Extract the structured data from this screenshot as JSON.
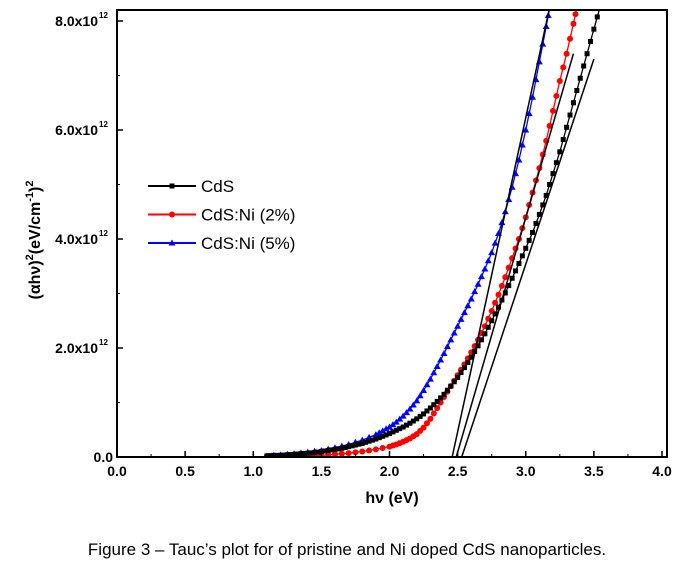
{
  "chart_data": {
    "type": "scatter",
    "title": "",
    "xlabel": "hν (eV)",
    "ylabel": "(αhν)² (eV/cm⁻¹)²",
    "ylabel_parts": {
      "base": "(αhν)",
      "exp": "2",
      "unit": "(eV/cm",
      "unit_exp": "-1",
      "close": ")",
      "close_exp": "2"
    },
    "xlim": [
      0,
      4.0
    ],
    "ylim": [
      0,
      8.2
    ],
    "y_scale_note": "x10^12",
    "xticks": [
      "0.0",
      "0.5",
      "1.0",
      "1.5",
      "2.0",
      "2.5",
      "3.0",
      "3.5",
      "4.0"
    ],
    "yticks": [
      {
        "v": 0,
        "label": "0.0",
        "exp": ""
      },
      {
        "v": 2,
        "label": "2.0x10",
        "exp": "12"
      },
      {
        "v": 4,
        "label": "4.0x10",
        "exp": "12"
      },
      {
        "v": 6,
        "label": "6.0x10",
        "exp": "12"
      },
      {
        "v": 8,
        "label": "8.0x10",
        "exp": "12"
      }
    ],
    "legend_position": "center-left",
    "series": [
      {
        "name": "CdS",
        "color": "#000000",
        "marker": "square",
        "points": [
          [
            1.1,
            0.02
          ],
          [
            1.15,
            0.03
          ],
          [
            1.2,
            0.03
          ],
          [
            1.25,
            0.04
          ],
          [
            1.3,
            0.05
          ],
          [
            1.35,
            0.06
          ],
          [
            1.4,
            0.07
          ],
          [
            1.45,
            0.08
          ],
          [
            1.5,
            0.1
          ],
          [
            1.55,
            0.12
          ],
          [
            1.6,
            0.14
          ],
          [
            1.65,
            0.16
          ],
          [
            1.7,
            0.19
          ],
          [
            1.75,
            0.22
          ],
          [
            1.8,
            0.25
          ],
          [
            1.85,
            0.29
          ],
          [
            1.9,
            0.33
          ],
          [
            1.95,
            0.38
          ],
          [
            2.0,
            0.43
          ],
          [
            2.05,
            0.49
          ],
          [
            2.1,
            0.55
          ],
          [
            2.15,
            0.62
          ],
          [
            2.2,
            0.7
          ],
          [
            2.25,
            0.79
          ],
          [
            2.3,
            0.9
          ],
          [
            2.35,
            1.02
          ],
          [
            2.4,
            1.15
          ],
          [
            2.45,
            1.3
          ],
          [
            2.5,
            1.46
          ],
          [
            2.55,
            1.64
          ],
          [
            2.6,
            1.83
          ],
          [
            2.65,
            2.04
          ],
          [
            2.7,
            2.26
          ],
          [
            2.75,
            2.5
          ],
          [
            2.8,
            2.75
          ],
          [
            2.85,
            3.01
          ],
          [
            2.9,
            3.28
          ],
          [
            2.95,
            3.55
          ],
          [
            3.0,
            3.83
          ],
          [
            3.05,
            4.12
          ],
          [
            3.1,
            4.45
          ],
          [
            3.15,
            4.8
          ],
          [
            3.2,
            5.2
          ],
          [
            3.25,
            5.6
          ],
          [
            3.3,
            6.05
          ],
          [
            3.35,
            6.5
          ],
          [
            3.4,
            6.95
          ],
          [
            3.45,
            7.4
          ],
          [
            3.5,
            7.85
          ],
          [
            3.55,
            8.3
          ]
        ]
      },
      {
        "name": "CdS:Ni (2%)",
        "color": "#ff0000",
        "marker": "circle",
        "points": [
          [
            1.1,
            0.01
          ],
          [
            1.2,
            0.01
          ],
          [
            1.3,
            0.02
          ],
          [
            1.4,
            0.02
          ],
          [
            1.5,
            0.03
          ],
          [
            1.6,
            0.05
          ],
          [
            1.7,
            0.07
          ],
          [
            1.8,
            0.1
          ],
          [
            1.9,
            0.14
          ],
          [
            2.0,
            0.19
          ],
          [
            2.05,
            0.23
          ],
          [
            2.1,
            0.28
          ],
          [
            2.15,
            0.34
          ],
          [
            2.2,
            0.42
          ],
          [
            2.25,
            0.54
          ],
          [
            2.3,
            0.7
          ],
          [
            2.35,
            0.9
          ],
          [
            2.4,
            1.1
          ],
          [
            2.45,
            1.3
          ],
          [
            2.5,
            1.5
          ],
          [
            2.55,
            1.7
          ],
          [
            2.6,
            1.92
          ],
          [
            2.65,
            2.15
          ],
          [
            2.7,
            2.4
          ],
          [
            2.75,
            2.68
          ],
          [
            2.8,
            2.98
          ],
          [
            2.85,
            3.3
          ],
          [
            2.9,
            3.65
          ],
          [
            2.95,
            4.0
          ],
          [
            3.0,
            4.4
          ],
          [
            3.05,
            4.85
          ],
          [
            3.1,
            5.3
          ],
          [
            3.15,
            5.8
          ],
          [
            3.2,
            6.35
          ],
          [
            3.25,
            6.9
          ],
          [
            3.3,
            7.4
          ],
          [
            3.35,
            7.95
          ],
          [
            3.38,
            8.3
          ]
        ]
      },
      {
        "name": "CdS:Ni (5%)",
        "color": "#0000ff",
        "marker": "triangle",
        "points": [
          [
            1.1,
            0.02
          ],
          [
            1.2,
            0.04
          ],
          [
            1.3,
            0.06
          ],
          [
            1.4,
            0.09
          ],
          [
            1.5,
            0.12
          ],
          [
            1.6,
            0.17
          ],
          [
            1.7,
            0.23
          ],
          [
            1.8,
            0.31
          ],
          [
            1.9,
            0.41
          ],
          [
            1.95,
            0.48
          ],
          [
            2.0,
            0.55
          ],
          [
            2.05,
            0.64
          ],
          [
            2.1,
            0.75
          ],
          [
            2.15,
            0.88
          ],
          [
            2.2,
            1.03
          ],
          [
            2.25,
            1.22
          ],
          [
            2.3,
            1.43
          ],
          [
            2.35,
            1.66
          ],
          [
            2.4,
            1.9
          ],
          [
            2.45,
            2.15
          ],
          [
            2.5,
            2.4
          ],
          [
            2.55,
            2.65
          ],
          [
            2.6,
            2.9
          ],
          [
            2.65,
            3.17
          ],
          [
            2.7,
            3.45
          ],
          [
            2.75,
            3.75
          ],
          [
            2.8,
            4.1
          ],
          [
            2.85,
            4.5
          ],
          [
            2.9,
            4.95
          ],
          [
            2.95,
            5.45
          ],
          [
            3.0,
            6.0
          ],
          [
            3.05,
            6.6
          ],
          [
            3.1,
            7.25
          ],
          [
            3.15,
            7.9
          ],
          [
            3.18,
            8.3
          ]
        ]
      }
    ],
    "fit_lines": [
      {
        "for": "CdS:Ni (5%)",
        "from": [
          2.46,
          0
        ],
        "to": [
          3.18,
          8.3
        ]
      },
      {
        "for": "CdS:Ni (2%)",
        "from": [
          2.49,
          0
        ],
        "to": [
          3.35,
          7.4
        ]
      },
      {
        "for": "CdS",
        "from": [
          2.53,
          0
        ],
        "to": [
          3.5,
          7.3
        ]
      }
    ]
  },
  "caption": "Figure 3 – Tauc’s plot for of pristine and Ni doped CdS nanoparticles."
}
